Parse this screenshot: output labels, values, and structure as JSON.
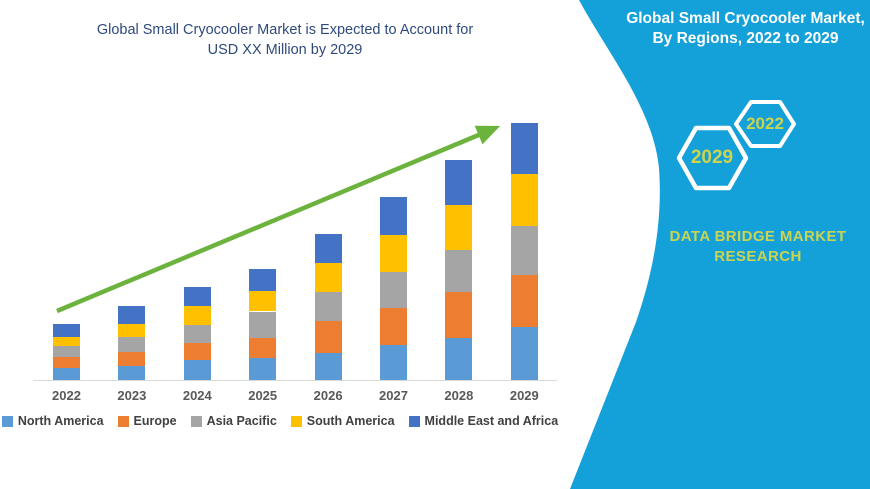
{
  "header": {
    "title_line1": "Global Small Cryocooler Market is Expected to Account for",
    "title_line2": "USD XX Million by 2029"
  },
  "sidebar": {
    "background_color": "#14a0d8",
    "accent_text_color": "#ccd44f",
    "title_line1": "Global Small Cryocooler Market,",
    "title_line2": "By Regions, 2022 to 2029",
    "hexagon_back_label": "2029",
    "hexagon_front_label": "2022",
    "brand_line1": "DATA BRIDGE MARKET",
    "brand_line2": "RESEARCH"
  },
  "chart_data": {
    "type": "bar",
    "stacked": true,
    "title": "Global Small Cryocooler Market is Expected to Account for USD XX Million by 2029",
    "xlabel": "",
    "ylabel": "",
    "value_unit": "market size index (illustrative, USD XX Million)",
    "categories": [
      "2022",
      "2023",
      "2024",
      "2025",
      "2026",
      "2027",
      "2028",
      "2029"
    ],
    "series": [
      {
        "name": "North America",
        "color": "#5B9BD5",
        "values": [
          12,
          14,
          20,
          22,
          27,
          35,
          42,
          53
        ]
      },
      {
        "name": "Europe",
        "color": "#ED7D31",
        "values": [
          11,
          14,
          17,
          20,
          32,
          36,
          45,
          51
        ]
      },
      {
        "name": "Asia Pacific",
        "color": "#A5A5A5",
        "values": [
          11,
          15,
          18,
          26,
          28,
          36,
          42,
          49
        ]
      },
      {
        "name": "South America",
        "color": "#FFC000",
        "values": [
          9,
          13,
          18,
          20,
          29,
          37,
          45,
          51
        ]
      },
      {
        "name": "Middle East and Africa",
        "color": "#4472C4",
        "values": [
          13,
          17,
          19,
          22,
          29,
          38,
          44,
          51
        ]
      }
    ],
    "totals": [
      56,
      73,
      92,
      110,
      145,
      182,
      218,
      255
    ],
    "ylim": [
      0,
      260
    ],
    "grid": false,
    "legend_position": "bottom",
    "axis_line_color": "#d9d9d9",
    "trend_arrow": {
      "present": true,
      "color": "#6cb33e",
      "direction": "up-right"
    }
  }
}
